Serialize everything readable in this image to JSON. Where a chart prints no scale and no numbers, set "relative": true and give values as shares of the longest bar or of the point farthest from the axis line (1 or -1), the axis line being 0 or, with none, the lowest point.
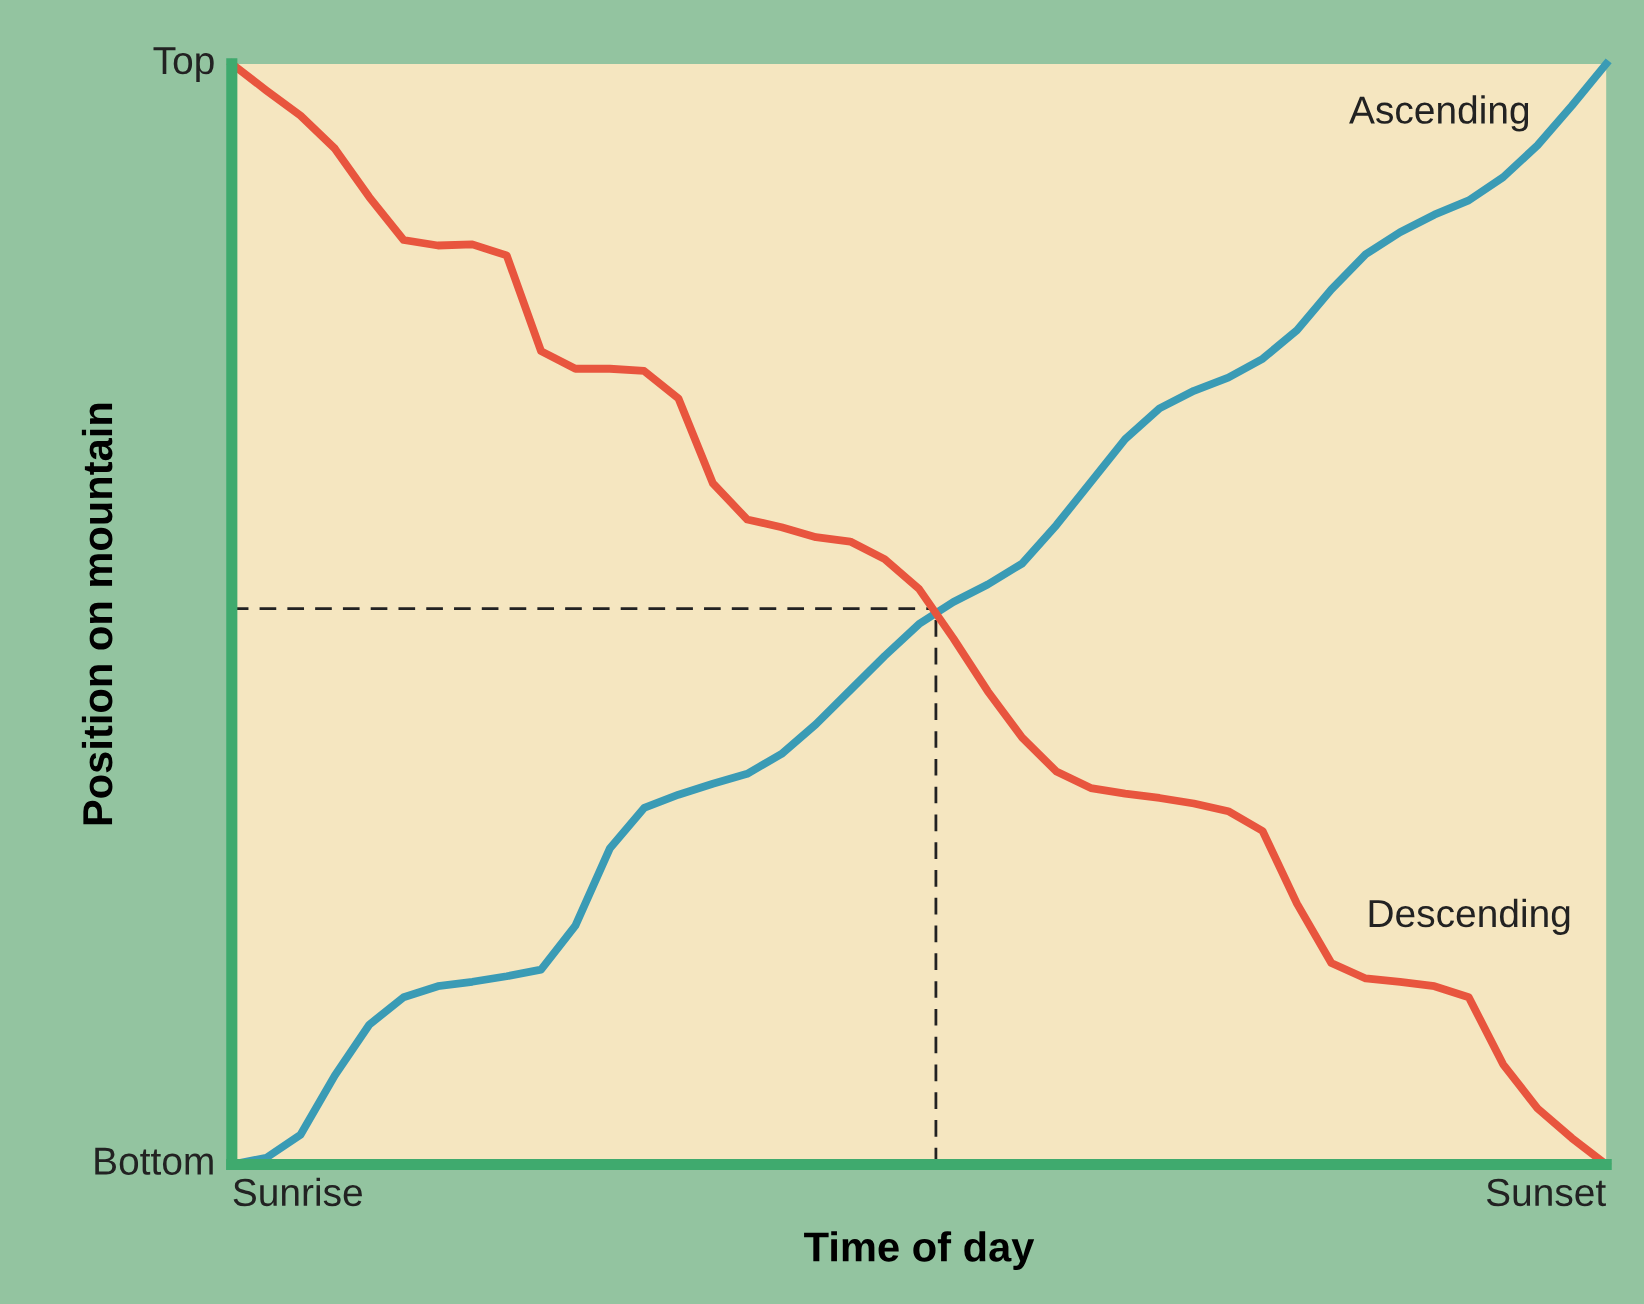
{
  "chart_data": {
    "type": "line",
    "xlabel": "Time of day",
    "ylabel": "Position on mountain",
    "relative": true,
    "legend": false,
    "marker": "none",
    "line_style": "solid",
    "annotations": [
      "Top",
      "Bottom",
      "Sunrise",
      "Sunset"
    ],
    "categories": [
      null,
      null,
      null,
      null,
      null,
      null,
      null,
      null,
      null,
      null,
      null,
      null,
      null,
      null,
      null,
      null,
      null,
      null,
      null,
      null,
      null,
      null,
      null,
      null,
      null,
      null,
      null,
      null,
      null,
      null,
      null,
      null,
      null,
      null,
      null,
      null,
      null,
      null,
      null,
      null,
      null
    ],
    "ref_lines": [
      {
        "axis": "y",
        "value": 0.505,
        "color": "#222222",
        "line_style": "dashed"
      }
    ],
    "series": [
      {
        "name": "Ascending",
        "color": "#3a9bb5",
        "values": [
          0,
          0.006,
          0.027,
          0.081,
          0.127,
          0.152,
          0.162,
          0.166,
          0.171,
          0.177,
          0.217,
          0.287,
          0.324,
          0.336,
          0.346,
          0.355,
          0.373,
          0.4,
          0.431,
          0.462,
          0.491,
          0.511,
          0.527,
          0.546,
          0.581,
          0.62,
          0.659,
          0.687,
          0.703,
          0.715,
          0.732,
          0.758,
          0.795,
          0.827,
          0.847,
          0.863,
          0.876,
          0.897,
          0.926,
          0.962,
          1
        ]
      },
      {
        "name": "Descending",
        "color": "#e8553e",
        "values": [
          1,
          0.976,
          0.953,
          0.923,
          0.879,
          0.84,
          0.835,
          0.836,
          0.826,
          0.739,
          0.723,
          0.723,
          0.721,
          0.696,
          0.619,
          0.586,
          0.579,
          0.57,
          0.566,
          0.55,
          0.523,
          0.478,
          0.43,
          0.388,
          0.357,
          0.342,
          0.337,
          0.333,
          0.328,
          0.321,
          0.303,
          0.237,
          0.183,
          0.169,
          0.166,
          0.162,
          0.152,
          0.091,
          0.051,
          0.024,
          0
        ]
      }
    ]
  }
}
